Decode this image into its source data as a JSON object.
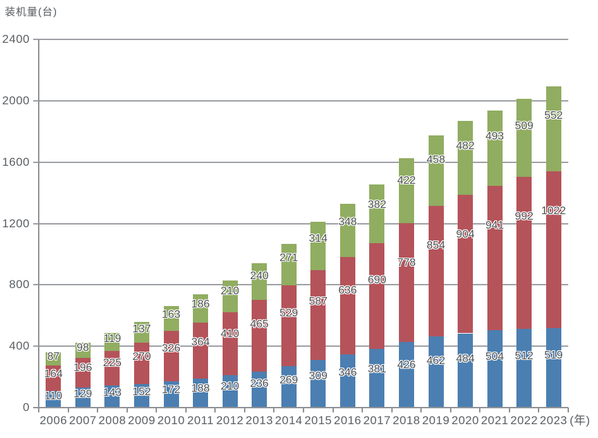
{
  "title": "装机量(台)",
  "colors": {
    "blue": "#4b7fb1",
    "red": "#b5535a",
    "green": "#90ad61",
    "grid": "#9ea1a5",
    "axis": "#8f9296",
    "tick_text": "#5a5f63",
    "value_text": "#4d4f52"
  },
  "chart_data": {
    "type": "bar",
    "stacked": true,
    "title": "装机量(台)",
    "xlabel": "(年)",
    "ylabel": "装机量(台)",
    "legend": false,
    "grid": true,
    "ylim": [
      0,
      2400
    ],
    "yticks": [
      0,
      400,
      800,
      1200,
      1600,
      2000,
      2400
    ],
    "categories": [
      "2006",
      "2007",
      "2008",
      "2009",
      "2010",
      "2011",
      "2012",
      "2013",
      "2014",
      "2015",
      "2016",
      "2017",
      "2018",
      "2019",
      "2020",
      "2021",
      "2022",
      "2023"
    ],
    "series": [
      {
        "name": "blue-bottom",
        "color": "#4b7fb1",
        "values": [
          110,
          129,
          143,
          152,
          172,
          188,
          210,
          236,
          269,
          309,
          346,
          381,
          426,
          462,
          484,
          504,
          512,
          519
        ]
      },
      {
        "name": "red-middle",
        "color": "#b5535a",
        "values": [
          164,
          196,
          225,
          270,
          326,
          364,
          410,
          465,
          529,
          587,
          636,
          690,
          778,
          854,
          904,
          941,
          992,
          1022
        ]
      },
      {
        "name": "green-top",
        "color": "#90ad61",
        "values": [
          87,
          98,
          119,
          137,
          163,
          186,
          210,
          240,
          271,
          314,
          348,
          382,
          422,
          458,
          482,
          493,
          509,
          552
        ]
      }
    ]
  }
}
